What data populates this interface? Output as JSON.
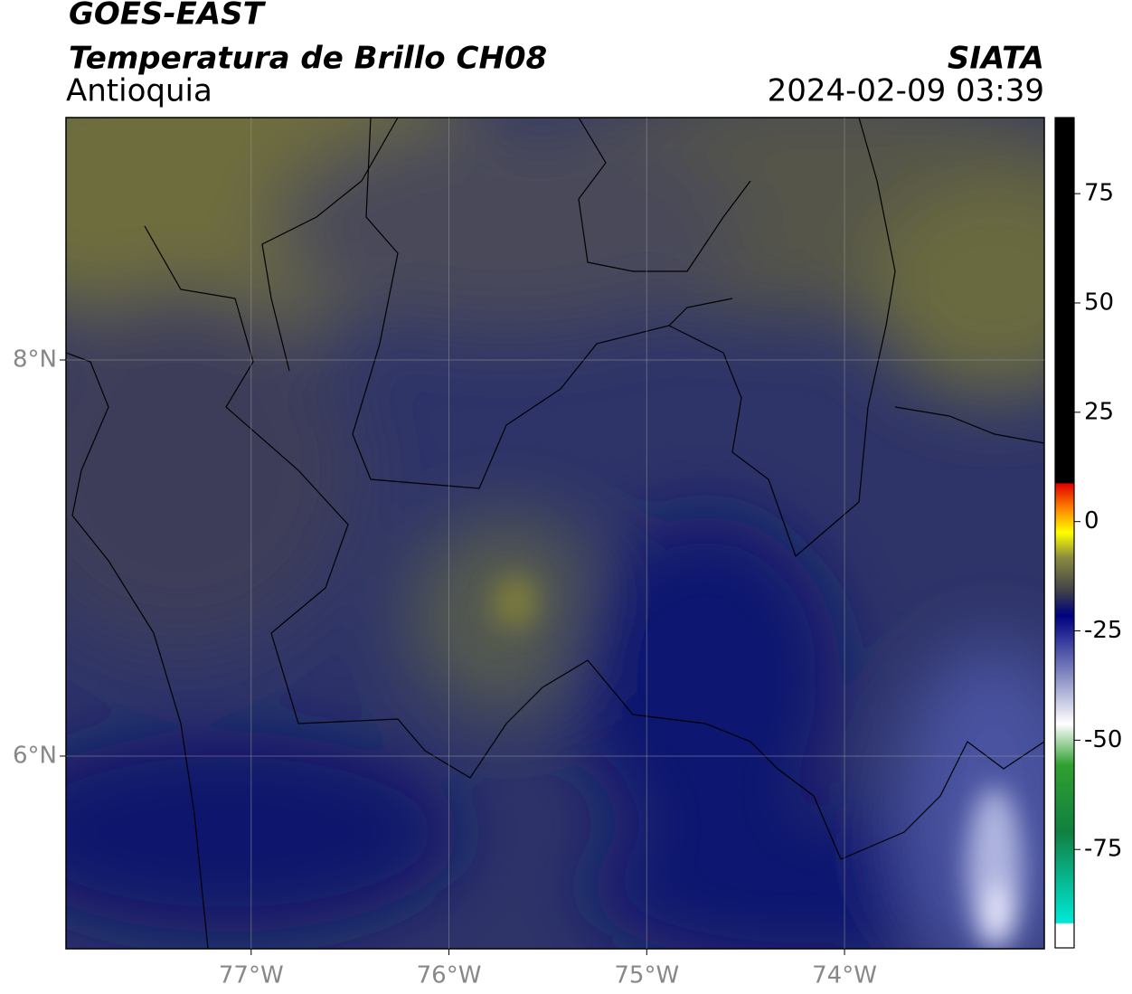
{
  "header": {
    "title": "GOES-EAST",
    "subtitle": "Temperatura de Brillo CH08",
    "region": "Antioquia",
    "source": "SIATA",
    "datetime": "2024-02-09 03:39"
  },
  "map": {
    "xlim": [
      -77.936,
      -72.99
    ],
    "ylim": [
      5.027,
      9.224
    ],
    "xticks": [
      {
        "value": -77,
        "label": "77°W"
      },
      {
        "value": -76,
        "label": "76°W"
      },
      {
        "value": -75,
        "label": "75°W"
      },
      {
        "value": -74,
        "label": "74°W"
      }
    ],
    "yticks": [
      {
        "value": 8,
        "label": "8°N"
      },
      {
        "value": 6,
        "label": "6°N"
      }
    ],
    "grid": true
  },
  "colorbar": {
    "lim": [
      -97.5,
      92.4
    ],
    "ticks": [
      75,
      50,
      25,
      0,
      -25,
      -50,
      -75
    ]
  }
}
